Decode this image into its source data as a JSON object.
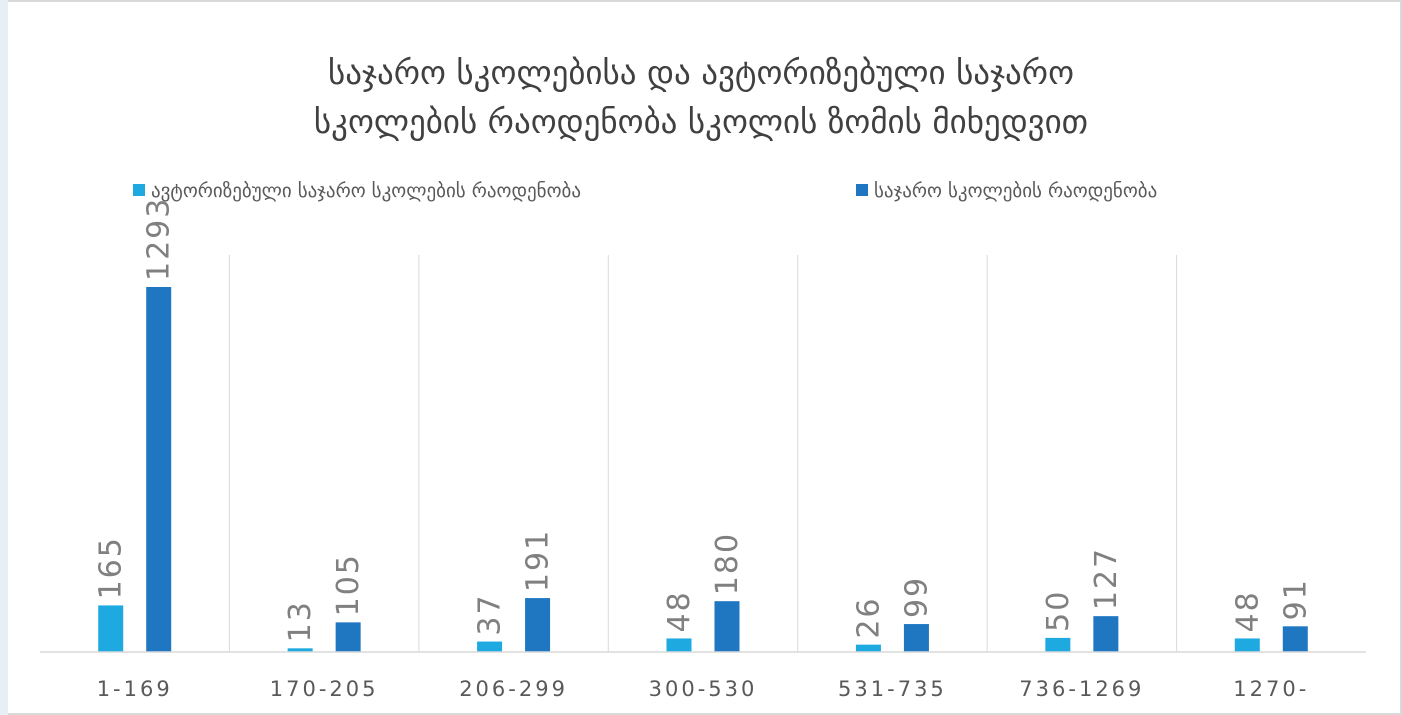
{
  "colors": {
    "series_light": "#1EAAE1",
    "series_dark": "#1F77C2",
    "title_text": "#404040",
    "label_text": "#808080",
    "axis_text": "#595959",
    "gridline": "#D9D9D9",
    "frame_border": "#D9D9D9",
    "frame_accent_left": "#E7EFF6"
  },
  "chart_data": {
    "type": "bar",
    "title": "საჯარო სკოლებისა და ავტორიზებული საჯარო სკოლების რაოდენობა სკოლის ზომის მიხედვით",
    "title_lines": [
      "საჯარო სკოლებისა და ავტორიზებული საჯარო",
      "სკოლების რაოდენობა სკოლის ზომის მიხედვით"
    ],
    "xlabel": "",
    "ylabel": "",
    "ylim": [
      0,
      1293
    ],
    "categories": [
      "1-169",
      "170-205",
      "206-299",
      "300-530",
      "531-735",
      "736-1269",
      "1270-"
    ],
    "series": [
      {
        "name": "ავტორიზებული საჯარო სკოლების რაოდენობა",
        "values": [
          165,
          13,
          37,
          48,
          26,
          50,
          48
        ]
      },
      {
        "name": "საჯარო სკოლების რაოდენობა",
        "values": [
          1293,
          105,
          191,
          180,
          99,
          127,
          91
        ]
      }
    ],
    "legend_position": "top",
    "grid": "vertical category separators",
    "data_labels": "vertical, above bars"
  }
}
